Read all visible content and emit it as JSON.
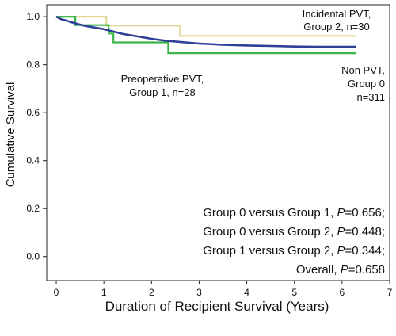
{
  "chart_data": {
    "type": "line",
    "title": "",
    "xlabel": "Duration of Recipient Survival (Years)",
    "ylabel": "Cumulative Survival",
    "xlim": [
      -0.2,
      7.0
    ],
    "ylim": [
      -0.1,
      1.05
    ],
    "xticks": [
      "0",
      "1",
      "2",
      "3",
      "4",
      "5",
      "6",
      "7"
    ],
    "yticks": [
      "0.0",
      "0.2",
      "0.4",
      "0.6",
      "0.8",
      "1.0"
    ],
    "grid": false,
    "legend": "none",
    "series": [
      {
        "color": "#e3d898",
        "x": [
          0,
          1.05,
          1.05,
          2.6,
          2.6,
          6.3
        ],
        "y": [
          1.0,
          1.0,
          0.963,
          0.963,
          0.92,
          0.92
        ]
      },
      {
        "color": "#3ab54a",
        "x": [
          0,
          0.4,
          0.4,
          1.1,
          1.1,
          1.2,
          1.2,
          2.35,
          2.35,
          6.3
        ],
        "y": [
          1.0,
          1.0,
          0.965,
          0.965,
          0.93,
          0.93,
          0.893,
          0.893,
          0.848,
          0.848
        ],
        "label": "Preoperative PVT, Group 1, n=28"
      },
      {
        "color": "#2e3f98",
        "x": [
          0,
          0.05,
          0.1,
          0.2,
          0.3,
          0.45,
          0.6,
          0.8,
          1.0,
          1.2,
          1.4,
          1.7,
          2.0,
          2.3,
          2.6,
          3.0,
          3.5,
          4.0,
          4.5,
          5.0,
          5.5,
          6.0,
          6.3
        ],
        "y": [
          1.0,
          0.995,
          0.99,
          0.985,
          0.978,
          0.97,
          0.962,
          0.955,
          0.948,
          0.938,
          0.928,
          0.918,
          0.908,
          0.9,
          0.895,
          0.888,
          0.883,
          0.88,
          0.878,
          0.876,
          0.875,
          0.875,
          0.875
        ]
      }
    ],
    "annotations": {
      "incidental": [
        "Incidental PVT,",
        "Group 2, n=30"
      ],
      "preoperative": [
        "Preoperative PVT,",
        "Group 1, n=28"
      ],
      "nonpvt": [
        "Non PVT,",
        "Group 0",
        "n=311"
      ]
    },
    "stats": [
      {
        "prefix": "Group 0 versus Group 1, ",
        "p": "P",
        "value": "=0.656;"
      },
      {
        "prefix": "Group 0 versus Group 2, ",
        "p": "P",
        "value": "=0.448;"
      },
      {
        "prefix": "Group 1 versus Group 2, ",
        "p": "P",
        "value": "=0.344;"
      },
      {
        "prefix": "Overall, ",
        "p": "P",
        "value": "=0.658"
      }
    ]
  }
}
